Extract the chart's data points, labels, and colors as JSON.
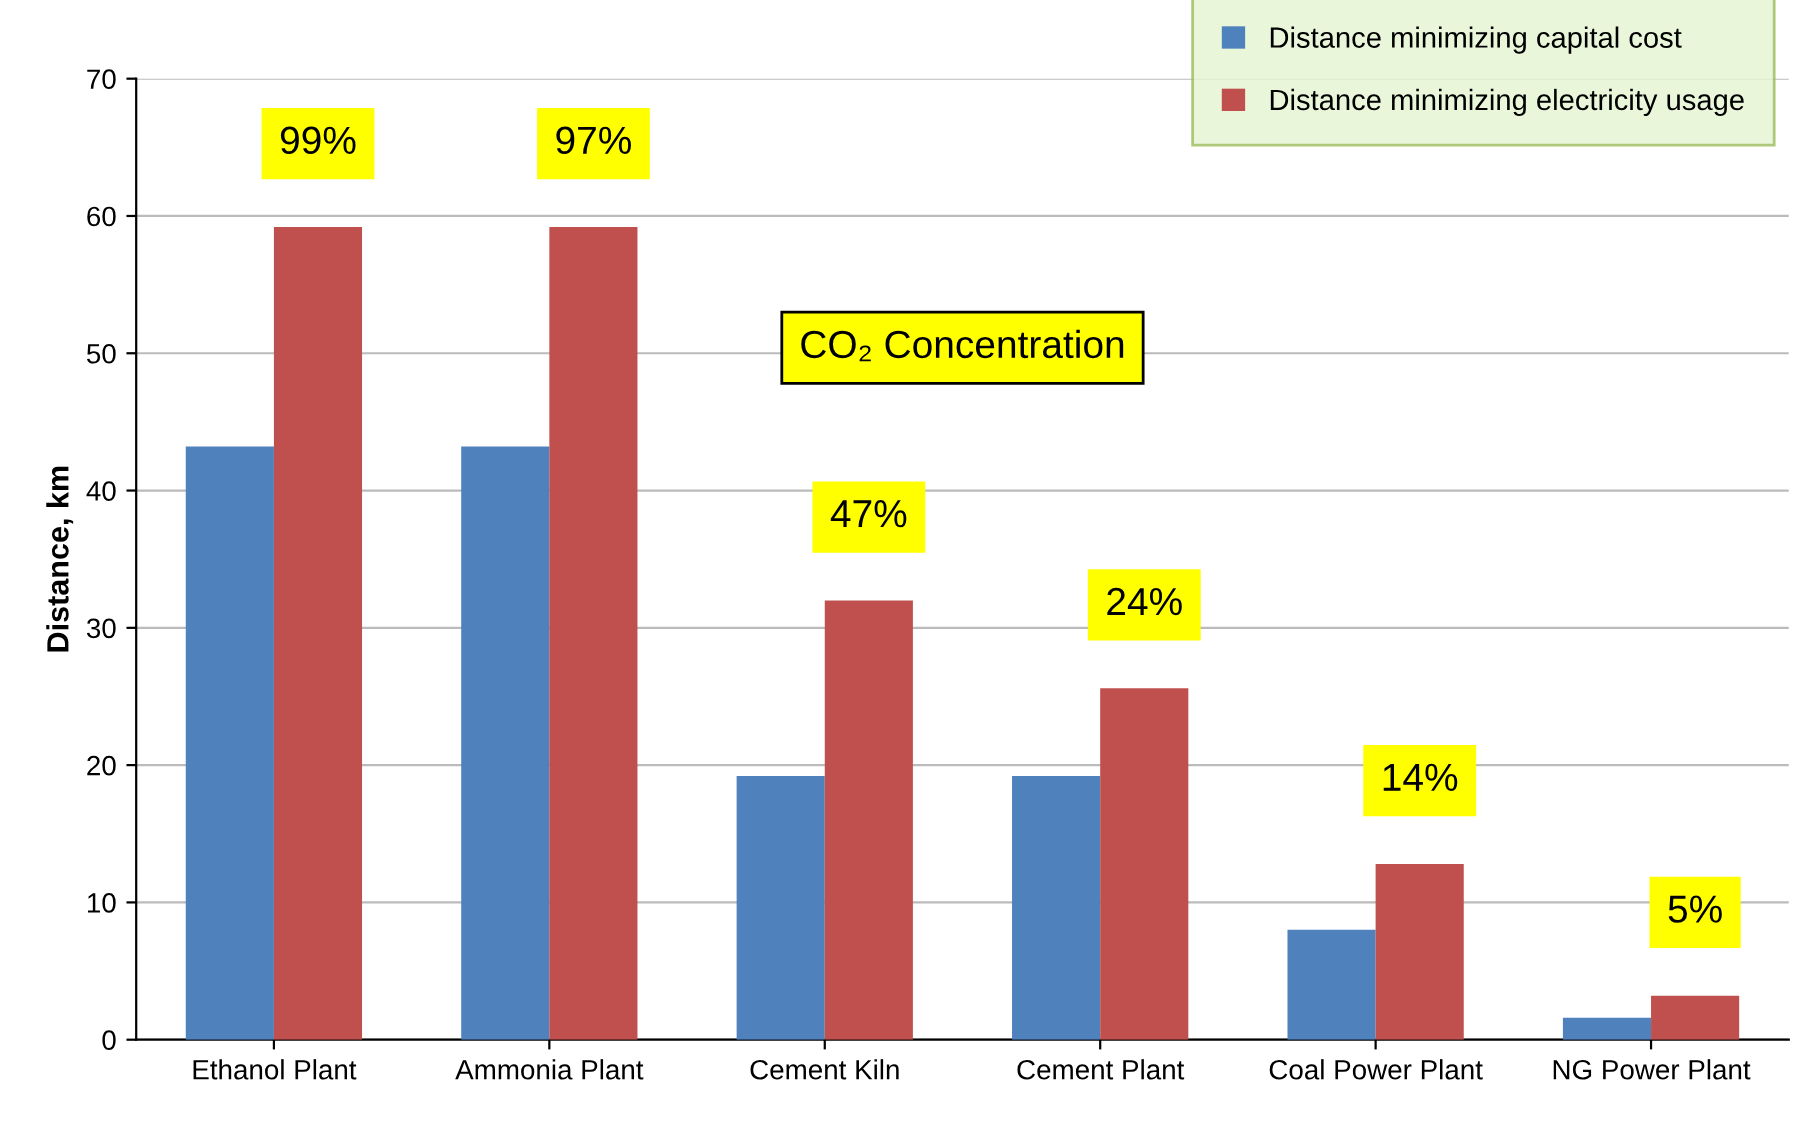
{
  "chart_data": {
    "type": "bar",
    "ylabel": "Distance, km",
    "categories": [
      "Ethanol Plant",
      "Ammonia Plant",
      "Cement Kiln",
      "Cement Plant",
      "Coal Power Plant",
      "NG Power Plant"
    ],
    "series": [
      {
        "name": "Distance minimizing capital cost",
        "color": "#4f81bd",
        "values": [
          43.2,
          43.2,
          19.2,
          19.2,
          8,
          1.6
        ]
      },
      {
        "name": "Distance minimizing electricity usage",
        "color": "#c0504d",
        "values": [
          59.2,
          59.2,
          32,
          25.6,
          12.8,
          3.2
        ]
      }
    ],
    "ylim": [
      0,
      70
    ],
    "yticks": [
      0,
      10,
      20,
      30,
      40,
      50,
      60,
      70
    ],
    "grid": "y",
    "legend": "top right",
    "annotations": [
      {
        "text": "99%",
        "x": "Ethanol Plant",
        "y": 59.2
      },
      {
        "text": "97%",
        "x": "Ammonia Plant",
        "y": 59.2
      },
      {
        "text": "47%",
        "x": "Cement Kiln",
        "y": 32
      },
      {
        "text": "24%",
        "x": "Cement Plant",
        "y": 25.6
      },
      {
        "text": "14%",
        "x": "Coal Power Plant",
        "y": 12.8
      },
      {
        "text": "5%",
        "x": "NG Power Plant",
        "y": 3.2
      },
      "CO₂ Concentration"
    ]
  }
}
